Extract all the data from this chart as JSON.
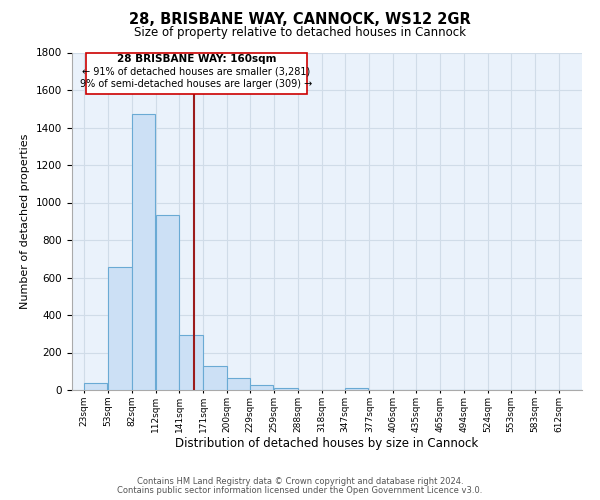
{
  "title": "28, BRISBANE WAY, CANNOCK, WS12 2GR",
  "subtitle": "Size of property relative to detached houses in Cannock",
  "xlabel": "Distribution of detached houses by size in Cannock",
  "ylabel": "Number of detached properties",
  "bar_color": "#cce0f5",
  "bar_edge_color": "#6aaad4",
  "bins": [
    "23sqm",
    "53sqm",
    "82sqm",
    "112sqm",
    "141sqm",
    "171sqm",
    "200sqm",
    "229sqm",
    "259sqm",
    "288sqm",
    "318sqm",
    "347sqm",
    "377sqm",
    "406sqm",
    "435sqm",
    "465sqm",
    "494sqm",
    "524sqm",
    "553sqm",
    "583sqm",
    "612sqm"
  ],
  "bin_starts": [
    23,
    53,
    82,
    112,
    141,
    171,
    200,
    229,
    259,
    288,
    318,
    347,
    377,
    406,
    435,
    465,
    494,
    524,
    553,
    583,
    612
  ],
  "bin_width": 29,
  "values": [
    40,
    655,
    1470,
    935,
    295,
    130,
    65,
    25,
    10,
    0,
    0,
    10,
    0,
    0,
    0,
    0,
    0,
    0,
    0,
    0,
    0
  ],
  "ylim": [
    0,
    1800
  ],
  "yticks": [
    0,
    200,
    400,
    600,
    800,
    1000,
    1200,
    1400,
    1600,
    1800
  ],
  "xlim_left": 8,
  "xlim_right": 641,
  "property_line_x": 160,
  "property_line_label": "28 BRISBANE WAY: 160sqm",
  "annotation_line1": "← 91% of detached houses are smaller (3,281)",
  "annotation_line2": "9% of semi-detached houses are larger (309) →",
  "box_color": "#ffffff",
  "box_edge_color": "#cc0000",
  "line_color": "#9b1c1c",
  "footer1": "Contains HM Land Registry data © Crown copyright and database right 2024.",
  "footer2": "Contains public sector information licensed under the Open Government Licence v3.0.",
  "background_color": "#ffffff",
  "grid_color": "#d0dce8",
  "grid_bg_color": "#eaf2fb"
}
